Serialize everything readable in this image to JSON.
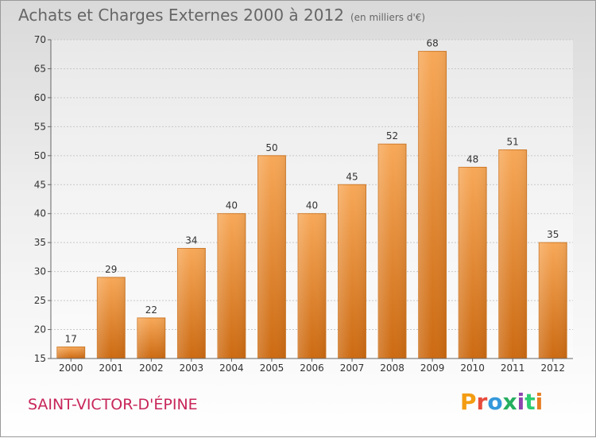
{
  "header": {
    "title": "Achats et Charges Externes 2000 à 2012",
    "subtitle": "(en milliers d'€)"
  },
  "footer": {
    "commune": "SAINT-VICTOR-D'ÉPINE",
    "logo_text": "Proxiti",
    "logo_colors": [
      "#f39c12",
      "#e74c3c",
      "#3498db",
      "#27ae60",
      "#8e44ad",
      "#2ecc71",
      "#e67e22"
    ]
  },
  "chart_data": {
    "type": "bar",
    "title": "Achats et Charges Externes 2000 à 2012",
    "subtitle": "(en milliers d'€)",
    "categories": [
      "2000",
      "2001",
      "2002",
      "2003",
      "2004",
      "2005",
      "2006",
      "2007",
      "2008",
      "2009",
      "2010",
      "2011",
      "2012"
    ],
    "values": [
      17,
      29,
      22,
      34,
      40,
      50,
      40,
      45,
      52,
      68,
      48,
      51,
      35
    ],
    "ylim": [
      15,
      70
    ],
    "yticks": [
      "15",
      "20",
      "25",
      "30",
      "35",
      "40",
      "45",
      "50",
      "55",
      "60",
      "65",
      "70"
    ],
    "grid": true,
    "bar_color_top": "#f7a858",
    "bar_color_bottom": "#cc6a12"
  }
}
